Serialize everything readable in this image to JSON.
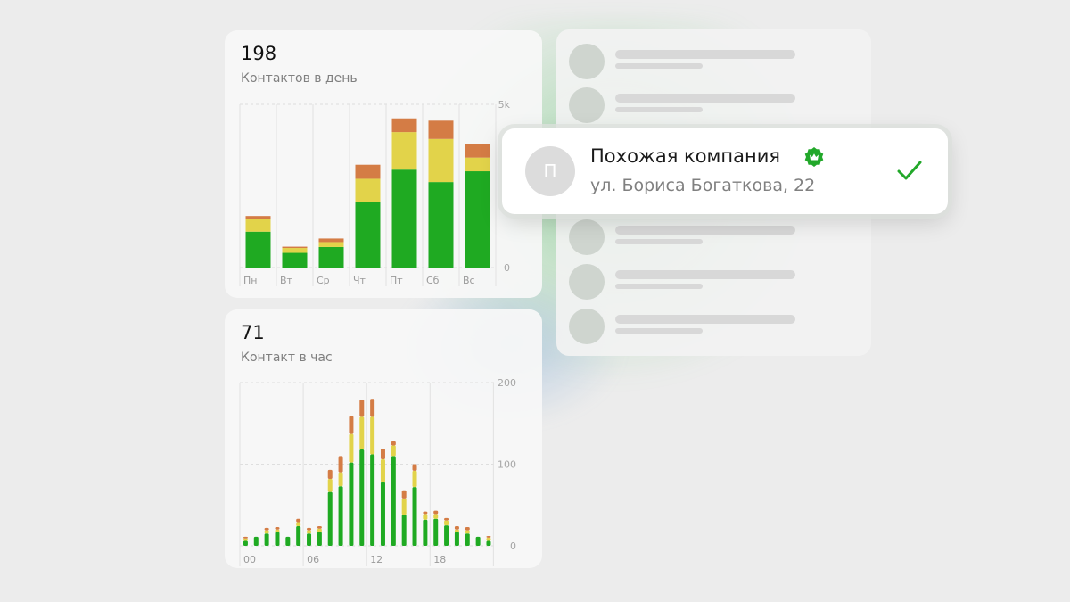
{
  "daily_card": {
    "value": "198",
    "label": "Контактов в день"
  },
  "hourly_card": {
    "value": "71",
    "label": "Контакт в час"
  },
  "company_card": {
    "avatar_letter": "П",
    "name": "Похожая компания",
    "address": "ул. Бориса Богаткова, 22",
    "verified_icon": "verified-badge-icon",
    "selected_icon": "checkmark-icon"
  },
  "colors": {
    "green": "#1faa22",
    "yellow": "#e2d34a",
    "orange": "#d47c45",
    "accent": "#22a82a"
  },
  "chart_data": [
    {
      "type": "bar",
      "stacked": true,
      "categories": [
        "Пн",
        "Вт",
        "Ср",
        "Чт",
        "Пт",
        "Сб",
        "Вс"
      ],
      "series": [
        {
          "values": [
            1100,
            450,
            630,
            2000,
            3000,
            2620,
            2950
          ]
        },
        {
          "values": [
            380,
            150,
            150,
            720,
            1150,
            1320,
            420
          ]
        },
        {
          "values": [
            100,
            40,
            110,
            430,
            420,
            560,
            420
          ]
        }
      ],
      "ylim": [
        0,
        5000
      ],
      "yticks": [
        "0",
        "5k"
      ],
      "grid": true
    },
    {
      "type": "bar",
      "stacked": true,
      "categories": [
        "0",
        "1",
        "2",
        "3",
        "4",
        "5",
        "6",
        "7",
        "8",
        "9",
        "10",
        "11",
        "12",
        "13",
        "14",
        "15",
        "16",
        "17",
        "18",
        "19",
        "20",
        "21",
        "22",
        "23"
      ],
      "xticks": [
        "00",
        "06",
        "12",
        "18"
      ],
      "series": [
        {
          "values": [
            6,
            11,
            15,
            17,
            11,
            24,
            15,
            17,
            66,
            73,
            102,
            118,
            112,
            78,
            110,
            38,
            72,
            32,
            33,
            25,
            17,
            15,
            11,
            6
          ]
        },
        {
          "values": [
            3,
            0,
            4,
            3,
            0,
            5,
            4,
            4,
            16,
            17,
            35,
            40,
            46,
            28,
            13,
            20,
            20,
            7,
            6,
            6,
            3,
            4,
            0,
            4
          ]
        },
        {
          "values": [
            2,
            0,
            3,
            3,
            0,
            4,
            3,
            3,
            11,
            20,
            22,
            21,
            22,
            13,
            5,
            10,
            8,
            3,
            4,
            3,
            4,
            4,
            0,
            2
          ]
        }
      ],
      "ylim": [
        0,
        200
      ],
      "yticks": [
        "0",
        "100",
        "200"
      ],
      "grid": true
    }
  ]
}
